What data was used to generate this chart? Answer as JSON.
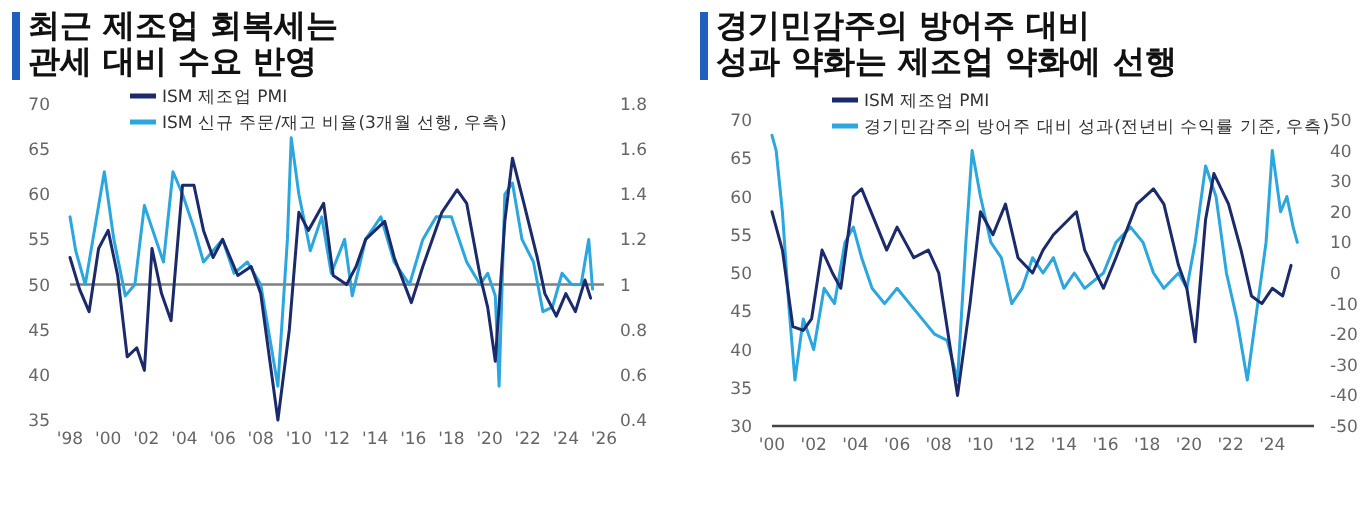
{
  "chart_data": [
    {
      "type": "line",
      "title": "최근 제조업 회복세는\n관세 대비 수요 반영",
      "legend": "top",
      "xlim": [
        1998,
        2026
      ],
      "xticks": [
        {
          "value": 1998,
          "label": "'98"
        },
        {
          "value": 2000,
          "label": "'00"
        },
        {
          "value": 2002,
          "label": "'02"
        },
        {
          "value": 2004,
          "label": "'04"
        },
        {
          "value": 2006,
          "label": "'06"
        },
        {
          "value": 2008,
          "label": "'08"
        },
        {
          "value": 2010,
          "label": "'10"
        },
        {
          "value": 2012,
          "label": "'12"
        },
        {
          "value": 2014,
          "label": "'14"
        },
        {
          "value": 2016,
          "label": "'16"
        },
        {
          "value": 2018,
          "label": "'18"
        },
        {
          "value": 2020,
          "label": "'20"
        },
        {
          "value": 2022,
          "label": "'22"
        },
        {
          "value": 2024,
          "label": "'24"
        },
        {
          "value": 2026,
          "label": "'26"
        }
      ],
      "ylim": [
        35,
        70
      ],
      "yticks": [
        35,
        40,
        45,
        50,
        55,
        60,
        65,
        70
      ],
      "y2lim": [
        0.4,
        1.8
      ],
      "y2ticks": [
        0.4,
        0.6,
        0.8,
        1,
        1.2,
        1.4,
        1.6,
        1.8
      ],
      "ref_lines": [
        {
          "axis": "y",
          "value": 50,
          "color": "#7f7f7f"
        }
      ],
      "series": [
        {
          "name": "ISM 제조업 PMI",
          "color": "#1b2a6b",
          "x": [
            1998.0,
            1998.5,
            1999.0,
            1999.5,
            2000.0,
            2000.5,
            2001.0,
            2001.5,
            2001.9,
            2002.3,
            2002.8,
            2003.3,
            2003.9,
            2004.5,
            2005.0,
            2005.5,
            2006.0,
            2006.8,
            2007.5,
            2008.0,
            2008.9,
            2009.5,
            2010.0,
            2010.5,
            2011.3,
            2011.8,
            2012.5,
            2013.0,
            2013.5,
            2014.5,
            2015.0,
            2015.9,
            2016.5,
            2017.5,
            2018.3,
            2018.8,
            2019.5,
            2019.9,
            2020.3,
            2020.8,
            2021.2,
            2021.8,
            2022.5,
            2022.9,
            2023.5,
            2024.0,
            2024.5,
            2025.0,
            2025.3
          ],
          "values": [
            53,
            49.5,
            47,
            54,
            56,
            51,
            42,
            43,
            40.5,
            54,
            49,
            46,
            61,
            61,
            56,
            53,
            55,
            51,
            52,
            49,
            35,
            45,
            58,
            56,
            59,
            51,
            50,
            52,
            55,
            57,
            53,
            48,
            52,
            58,
            60.5,
            59,
            51,
            47.5,
            41.5,
            57,
            64,
            59,
            53,
            49,
            46.5,
            49,
            47,
            50.5,
            48.5
          ]
        },
        {
          "name": "ISM 신규 주문/재고 비율(3개월 선행, 우측)",
          "color": "#2ba6de",
          "axis": "y2",
          "x": [
            1998.0,
            1998.3,
            1998.8,
            1999.3,
            1999.8,
            2000.3,
            2000.9,
            2001.4,
            2001.9,
            2002.3,
            2002.9,
            2003.4,
            2003.9,
            2004.5,
            2005.0,
            2005.5,
            2006.0,
            2006.6,
            2007.3,
            2008.0,
            2008.6,
            2008.9,
            2009.4,
            2009.6,
            2010.0,
            2010.6,
            2011.2,
            2011.7,
            2012.4,
            2012.8,
            2013.5,
            2014.3,
            2015.0,
            2015.8,
            2016.5,
            2017.2,
            2018.0,
            2018.8,
            2019.5,
            2019.9,
            2020.3,
            2020.5,
            2020.8,
            2021.2,
            2021.7,
            2022.3,
            2022.8,
            2023.3,
            2023.8,
            2024.3,
            2024.8,
            2025.0,
            2025.2,
            2025.4
          ],
          "values": [
            1.3,
            1.15,
            1.0,
            1.25,
            1.5,
            1.2,
            0.95,
            1.0,
            1.35,
            1.25,
            1.1,
            1.5,
            1.4,
            1.25,
            1.1,
            1.15,
            1.2,
            1.05,
            1.1,
            1.0,
            0.7,
            0.55,
            1.2,
            1.65,
            1.4,
            1.15,
            1.3,
            1.05,
            1.2,
            0.95,
            1.2,
            1.3,
            1.1,
            1.0,
            1.2,
            1.3,
            1.3,
            1.1,
            1.0,
            1.05,
            0.95,
            0.55,
            1.4,
            1.45,
            1.2,
            1.1,
            0.88,
            0.9,
            1.05,
            1.0,
            1.0,
            1.1,
            1.2,
            0.98
          ]
        }
      ]
    },
    {
      "type": "line",
      "title": "경기민감주의 방어주 대비\n성과 약화는 제조업 약화에 선행",
      "legend": "top",
      "xlim": [
        2000,
        2026
      ],
      "xticks": [
        {
          "value": 2000,
          "label": "'00"
        },
        {
          "value": 2002,
          "label": "'02"
        },
        {
          "value": 2004,
          "label": "'04"
        },
        {
          "value": 2006,
          "label": "'06"
        },
        {
          "value": 2008,
          "label": "'08"
        },
        {
          "value": 2010,
          "label": "'10"
        },
        {
          "value": 2012,
          "label": "'12"
        },
        {
          "value": 2014,
          "label": "'14"
        },
        {
          "value": 2016,
          "label": "'16"
        },
        {
          "value": 2018,
          "label": "'18"
        },
        {
          "value": 2020,
          "label": "'20"
        },
        {
          "value": 2022,
          "label": "'22"
        },
        {
          "value": 2024,
          "label": "'24"
        }
      ],
      "ylim": [
        30,
        70
      ],
      "yticks": [
        30,
        35,
        40,
        45,
        50,
        55,
        60,
        65,
        70
      ],
      "y2lim": [
        -50,
        50
      ],
      "y2ticks": [
        -50,
        -40,
        -30,
        -20,
        -10,
        0,
        10,
        20,
        30,
        40,
        50
      ],
      "series": [
        {
          "name": "ISM 제조업 PMI",
          "color": "#1b2a6b",
          "x": [
            2000.0,
            2000.5,
            2001.0,
            2001.5,
            2001.9,
            2002.4,
            2002.9,
            2003.3,
            2003.9,
            2004.3,
            2004.9,
            2005.5,
            2006.0,
            2006.8,
            2007.5,
            2008.0,
            2008.9,
            2009.5,
            2010.0,
            2010.6,
            2011.2,
            2011.8,
            2012.5,
            2013.0,
            2013.5,
            2014.6,
            2015.0,
            2015.9,
            2016.5,
            2017.5,
            2018.3,
            2018.8,
            2019.5,
            2019.9,
            2020.3,
            2020.8,
            2021.2,
            2021.9,
            2022.5,
            2023.0,
            2023.5,
            2024.0,
            2024.5,
            2024.9
          ],
          "values": [
            58,
            53,
            43,
            42.5,
            44,
            53,
            50,
            48,
            60,
            61,
            57,
            53,
            56,
            52,
            53,
            50,
            34,
            46,
            58,
            55,
            59,
            52,
            50,
            53,
            55,
            58,
            53,
            48,
            52,
            59,
            61,
            59,
            51,
            48,
            41,
            57,
            63,
            59,
            53,
            47,
            46,
            48,
            47,
            51
          ]
        },
        {
          "name": "경기민감주의 방어주 대비 성과(전년비 수익률 기준, 우측)",
          "color": "#2ba6de",
          "axis": "y2",
          "x": [
            2000.0,
            2000.2,
            2000.5,
            2000.8,
            2001.1,
            2001.5,
            2002.0,
            2002.5,
            2003.0,
            2003.5,
            2003.9,
            2004.3,
            2004.8,
            2005.4,
            2006.0,
            2006.6,
            2007.2,
            2007.8,
            2008.4,
            2008.9,
            2009.3,
            2009.6,
            2010.0,
            2010.5,
            2011.0,
            2011.5,
            2012.0,
            2012.5,
            2013.0,
            2013.5,
            2014.0,
            2014.5,
            2015.0,
            2015.9,
            2016.5,
            2017.2,
            2017.8,
            2018.3,
            2018.8,
            2019.5,
            2019.9,
            2020.3,
            2020.8,
            2021.3,
            2021.8,
            2022.3,
            2022.8,
            2023.3,
            2023.7,
            2024.0,
            2024.4,
            2024.7,
            2025.0,
            2025.2
          ],
          "values": [
            45,
            40,
            20,
            -10,
            -35,
            -15,
            -25,
            -5,
            -10,
            10,
            15,
            5,
            -5,
            -10,
            -5,
            -10,
            -15,
            -20,
            -22,
            -35,
            10,
            40,
            25,
            10,
            5,
            -10,
            -5,
            5,
            0,
            5,
            -5,
            0,
            -5,
            0,
            10,
            15,
            10,
            0,
            -5,
            0,
            -5,
            10,
            35,
            25,
            0,
            -15,
            -35,
            -10,
            10,
            40,
            20,
            25,
            15,
            10
          ]
        }
      ]
    }
  ]
}
